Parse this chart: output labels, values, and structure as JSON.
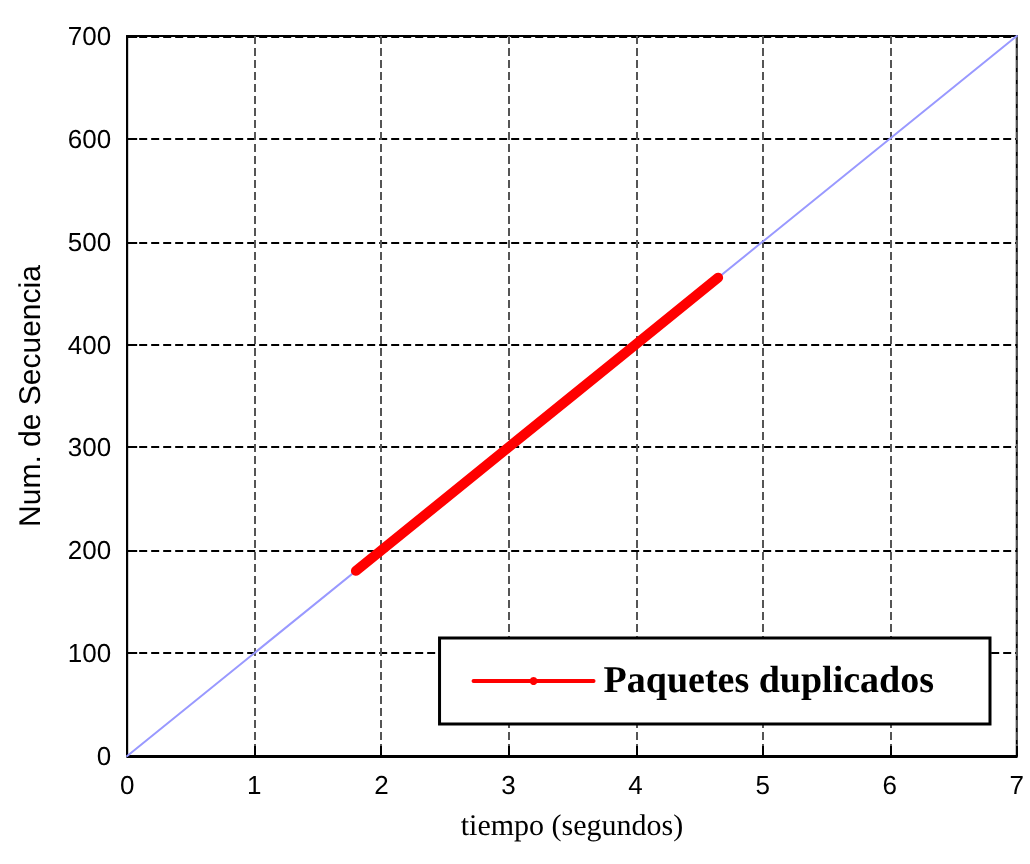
{
  "chart_data": {
    "type": "line",
    "xlabel": "tiempo (segundos)",
    "ylabel": "Num. de Secuencia",
    "x": [
      0,
      7
    ],
    "series": [
      {
        "color": "#9999ff",
        "values": [
          0,
          700
        ]
      },
      {
        "name": "Paquetes duplicados",
        "color": "#ff0000",
        "x": [
          1.8,
          2.5,
          3,
          3.5,
          4,
          4.65
        ],
        "values": [
          180,
          250,
          300,
          350,
          400,
          465
        ]
      }
    ],
    "xlim": [
      0,
      7
    ],
    "ylim": [
      0,
      700
    ],
    "xticks": [
      0,
      1,
      2,
      3,
      4,
      5,
      6,
      7
    ],
    "yticks": [
      0,
      100,
      200,
      300,
      400,
      500,
      600,
      700
    ],
    "grid": true,
    "legend": "bottom right",
    "marker": "none",
    "line_style": "solid"
  }
}
